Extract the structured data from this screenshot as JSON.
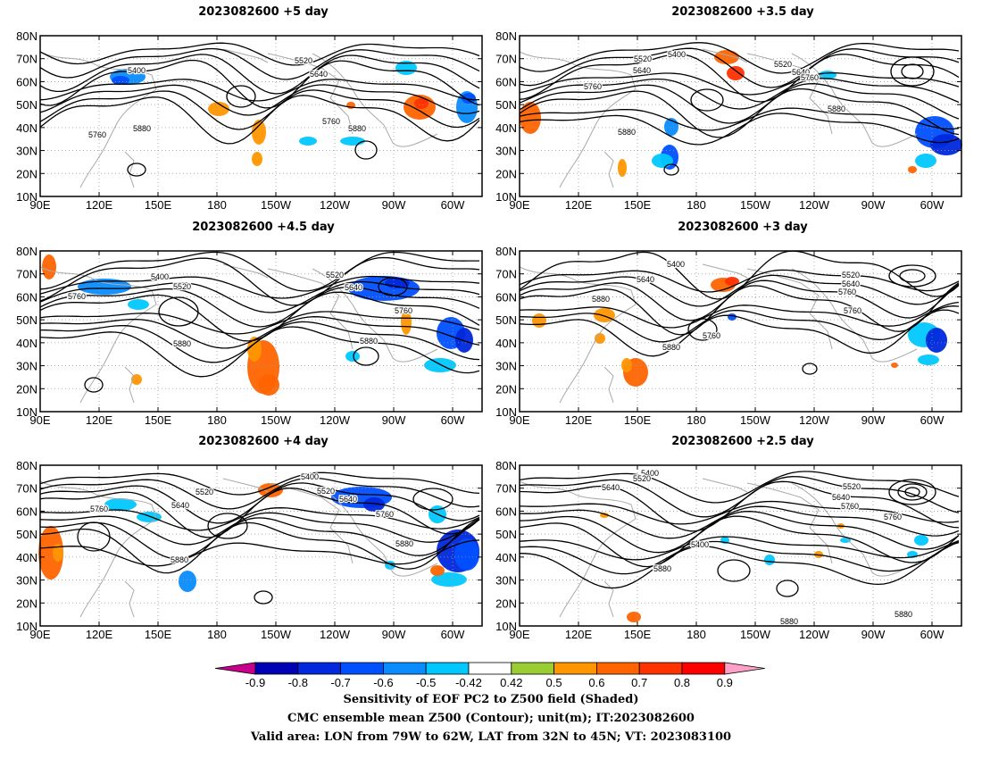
{
  "panels": [
    {
      "title": "2023082600 +5 day",
      "contour_labels": [
        "5400",
        "5520",
        "5640",
        "5760",
        "5880",
        "5760",
        "5880"
      ]
    },
    {
      "title": "2023082600 +3.5 day",
      "contour_labels": [
        "5400",
        "5520",
        "5640",
        "5760",
        "5520",
        "5640",
        "5760",
        "5880",
        "5880"
      ]
    },
    {
      "title": "2023082600 +4.5 day",
      "contour_labels": [
        "5400",
        "5520",
        "5760",
        "5520",
        "5640",
        "5760",
        "5880",
        "5880"
      ]
    },
    {
      "title": "2023082600 +3 day",
      "contour_labels": [
        "5400",
        "5640",
        "5520",
        "5640",
        "5760",
        "5760",
        "5880",
        "5760",
        "5880"
      ]
    },
    {
      "title": "2023082600 +4 day",
      "contour_labels": [
        "5400",
        "5520",
        "5640",
        "5760",
        "5520",
        "5640",
        "5760",
        "5880",
        "5880"
      ]
    },
    {
      "title": "2023082600 +2.5 day",
      "contour_labels": [
        "5400",
        "5520",
        "5640",
        "5520",
        "5640",
        "5760",
        "5400",
        "5760",
        "5880",
        "5880",
        "5880"
      ]
    }
  ],
  "axes": {
    "lat_labels": [
      "80N",
      "70N",
      "60N",
      "50N",
      "40N",
      "30N",
      "20N",
      "10N"
    ],
    "lon_labels": [
      "90E",
      "120E",
      "150E",
      "180",
      "150W",
      "120W",
      "90W",
      "60W"
    ]
  },
  "colorbar": {
    "labels": [
      "-0.9",
      "-0.8",
      "-0.7",
      "-0.6",
      "-0.5",
      "-0.42",
      "0.42",
      "0.5",
      "0.6",
      "0.7",
      "0.8",
      "0.9"
    ],
    "colors": [
      "#0000b4",
      "#0028dc",
      "#0050ff",
      "#0a8cff",
      "#00c8ff",
      "#ffffff",
      "#9acd32",
      "#ff9600",
      "#ff6400",
      "#ff3200",
      "#ff0000"
    ],
    "low_end_color": "#c8008c",
    "high_end_color": "#ffa0c8"
  },
  "captions": {
    "line1": "Sensitivity of EOF PC2 to Z500 field (Shaded)",
    "line2": "CMC ensemble mean Z500 (Contour); unit(m); IT:2023082600",
    "line3": "Valid area: LON from 79W to 62W, LAT from 32N to 45N; VT: 2023083100"
  }
}
